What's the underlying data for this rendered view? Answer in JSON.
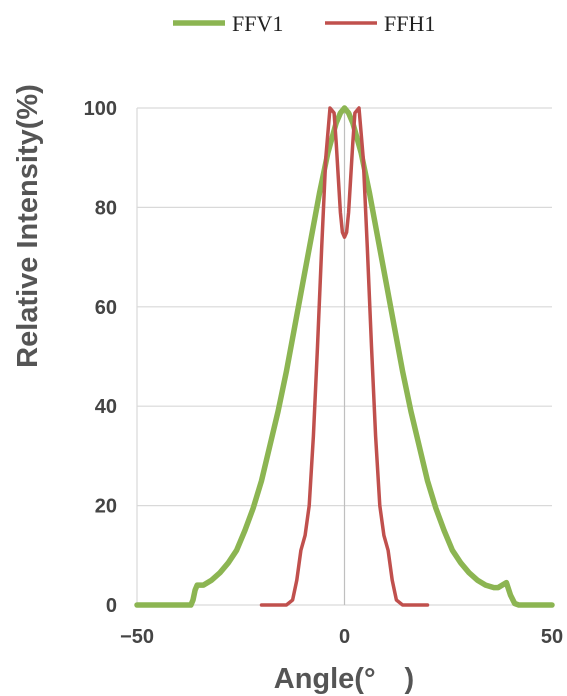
{
  "chart_data": {
    "type": "line",
    "title": "",
    "xlabel": "Angle(°　)",
    "ylabel": "Relative Intensity(%)",
    "xlim": [
      -50,
      50
    ],
    "ylim": [
      0,
      100
    ],
    "xticks": [
      -50,
      0,
      50
    ],
    "xtick_labels": [
      "−50",
      "0",
      "50"
    ],
    "yticks": [
      0,
      20,
      40,
      60,
      80,
      100
    ],
    "ytick_labels": [
      "0",
      "20",
      "40",
      "60",
      "80",
      "100"
    ],
    "grid": "horizontal",
    "legend_position": "top",
    "series": [
      {
        "name": "FFV1",
        "color": "#8cb552",
        "x": [
          -50,
          -37,
          -36.5,
          -36,
          -35.5,
          -34,
          -32,
          -30,
          -28,
          -26,
          -24,
          -22,
          -20,
          -18,
          -16,
          -14,
          -12,
          -10,
          -8,
          -6,
          -4,
          -2,
          -1,
          0,
          1,
          2,
          4,
          6,
          8,
          10,
          12,
          14,
          16,
          18,
          20,
          22,
          24,
          26,
          28,
          30,
          32,
          34,
          36,
          37,
          38,
          39,
          40,
          41,
          42,
          50
        ],
        "y": [
          0,
          0,
          1,
          3,
          4,
          4,
          5,
          6.5,
          8.5,
          11,
          15,
          19.5,
          25,
          32,
          39,
          47,
          56,
          65,
          74,
          83,
          91,
          97,
          99,
          100,
          99,
          97,
          91,
          83,
          74,
          65,
          56,
          47,
          39,
          32,
          25,
          19.5,
          15,
          11,
          8.5,
          6.5,
          5,
          4,
          3.5,
          3.5,
          4,
          4.5,
          2,
          0.3,
          0,
          0
        ]
      },
      {
        "name": "FFH1",
        "color": "#c0504d",
        "x": [
          -20,
          -14,
          -12.5,
          -11.5,
          -10.5,
          -9.5,
          -8.5,
          -7.5,
          -6.5,
          -5.5,
          -4.5,
          -3.5,
          -2.5,
          -2,
          -1.5,
          -1,
          -0.5,
          0,
          0.5,
          1,
          1.5,
          2,
          2.5,
          3.5,
          4.5,
          5.5,
          6.5,
          7.5,
          8.5,
          9.5,
          10.5,
          11.5,
          12.5,
          14,
          20
        ],
        "y": [
          0,
          0,
          1,
          5,
          11,
          14,
          20,
          34,
          52,
          72,
          90,
          100,
          99,
          93,
          86,
          79,
          75,
          74,
          75,
          79,
          86,
          93,
          99,
          100,
          90,
          72,
          52,
          34,
          20,
          14,
          11,
          5,
          1,
          0,
          0
        ]
      }
    ]
  }
}
